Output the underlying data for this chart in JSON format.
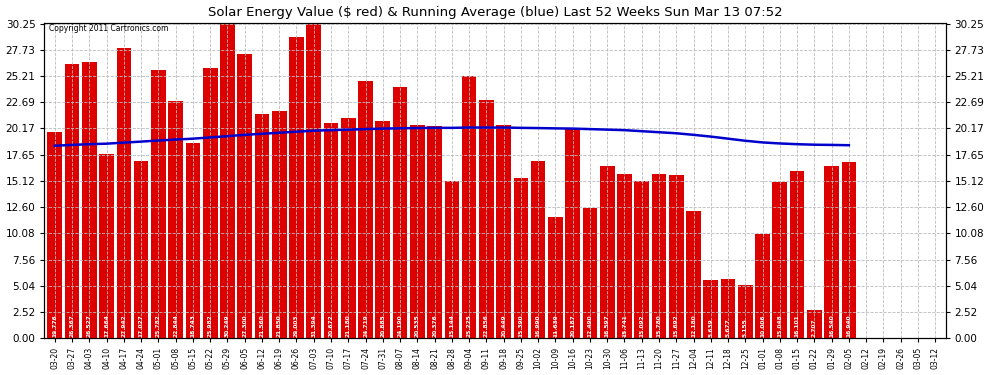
{
  "title": "Solar Energy Value ($ red) & Running Average (blue) Last 52 Weeks Sun Mar 13 07:52",
  "copyright": "Copyright 2011 Cartronics.com",
  "bar_color": "#dd0000",
  "line_color": "#0000cc",
  "bg_color": "#ffffff",
  "plot_bg_color": "#ffffff",
  "grid_color": "#bbbbbb",
  "yticks": [
    0.0,
    2.52,
    5.04,
    7.56,
    10.08,
    12.6,
    15.12,
    17.65,
    20.17,
    22.69,
    25.21,
    27.73,
    30.25
  ],
  "categories": [
    "03-20",
    "03-27",
    "04-03",
    "04-10",
    "04-17",
    "04-24",
    "05-01",
    "05-08",
    "05-15",
    "05-22",
    "05-29",
    "06-05",
    "06-12",
    "06-19",
    "06-26",
    "07-03",
    "07-10",
    "07-17",
    "07-24",
    "07-31",
    "08-07",
    "08-14",
    "08-21",
    "08-28",
    "09-04",
    "09-11",
    "09-18",
    "09-25",
    "10-02",
    "10-09",
    "10-16",
    "10-23",
    "10-30",
    "11-06",
    "11-13",
    "11-20",
    "11-27",
    "12-04",
    "12-11",
    "12-18",
    "12-25",
    "01-01",
    "01-08",
    "01-15",
    "01-22",
    "01-29",
    "02-05",
    "02-12",
    "02-19",
    "02-26",
    "03-05",
    "03-12"
  ],
  "values": [
    19.776,
    26.367,
    26.527,
    17.664,
    27.942,
    17.027,
    25.782,
    22.844,
    18.743,
    25.982,
    30.249,
    27.3,
    21.56,
    21.85,
    29.003,
    31.394,
    20.672,
    21.18,
    24.719,
    20.885,
    24.19,
    20.535,
    20.376,
    15.144,
    25.225,
    22.856,
    20.449,
    15.39,
    16.99,
    11.639,
    20.187,
    12.49,
    16.597,
    15.741,
    15.092,
    15.78,
    15.692,
    12.18,
    5.639,
    5.677,
    5.155,
    10.006,
    15.048,
    16.101,
    2.707,
    16.54,
    16.94,
    0.0,
    0.0,
    0.0,
    0.0,
    0.0
  ],
  "value_labels": [
    "19.776",
    "26.367",
    "26.527",
    "17.664",
    "27.942",
    "17.027",
    "25.782",
    "22.844",
    "18.743",
    "25.982",
    "30.249",
    "27.300",
    "21.560",
    "21.850",
    "29.003",
    "31.394",
    "20.672",
    "21.180",
    "24.719",
    "20.885",
    "24.190",
    "20.535",
    "20.376",
    "15.144",
    "25.225",
    "22.856",
    "20.449",
    "15.390",
    "16.990",
    "11.639",
    "20.187",
    "12.490",
    "16.597",
    "15.741",
    "15.092",
    "15.780",
    "15.692",
    "12.180",
    "5.639",
    "5.677",
    "5.155",
    "10.006",
    "15.048",
    "16.101",
    "2.707",
    "16.540",
    "16.940",
    "",
    "",
    "",
    "",
    ""
  ],
  "running_avg": [
    18.5,
    18.58,
    18.65,
    18.7,
    18.8,
    18.9,
    19.0,
    19.1,
    19.18,
    19.3,
    19.42,
    19.55,
    19.65,
    19.75,
    19.85,
    19.95,
    20.0,
    20.05,
    20.1,
    20.15,
    20.18,
    20.2,
    20.22,
    20.22,
    20.25,
    20.25,
    20.25,
    20.22,
    20.2,
    20.17,
    20.15,
    20.1,
    20.05,
    20.0,
    19.9,
    19.8,
    19.7,
    19.55,
    19.38,
    19.18,
    18.98,
    18.82,
    18.72,
    18.65,
    18.6,
    18.58,
    18.55
  ],
  "n_real": 47
}
